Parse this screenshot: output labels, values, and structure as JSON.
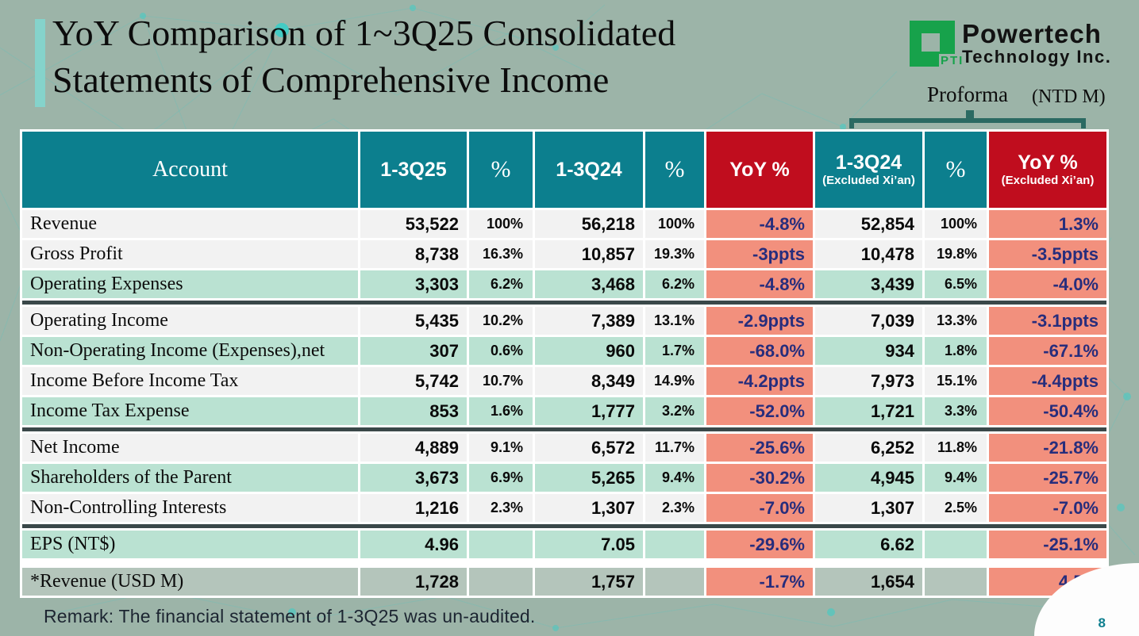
{
  "slide": {
    "title_line1": "YoY Comparison of 1~3Q25 Consolidated",
    "title_line2": "Statements of Comprehensive Income",
    "proforma_label": "Proforma",
    "unit_label": "(NTD M)",
    "remark": "Remark: The financial statement of 1-3Q25 was un-audited.",
    "page_number": "8"
  },
  "logo": {
    "brand_line1": "Powertech",
    "brand_line2": "Technology Inc.",
    "monogram": "PTI"
  },
  "colors": {
    "background": "#9cb4a8",
    "header_teal": "#0c7f8e",
    "header_red": "#c00d1e",
    "yoy_cell_salmon": "#f2907d",
    "yoy_text_navy": "#272d7c",
    "row_white": "#f2f2f2",
    "row_mint": "#bae2d2",
    "row_sage": "#b4c5bb",
    "group_separator": "#3a4849",
    "bracket": "#2b6a62",
    "logo_green": "#17a24b",
    "accent_bar": "#85d3cb"
  },
  "table": {
    "headers": {
      "account": "Account",
      "q25": "1-3Q25",
      "pct": "%",
      "q24": "1-3Q24",
      "yoy": "YoY %",
      "q24x_line1": "1-3Q24",
      "q24x_line2": "(Excluded Xi’an)",
      "yoyx_line1": "YoY %",
      "yoyx_line2": "(Excluded Xi’an)"
    },
    "rows": [
      {
        "label": "Revenue",
        "q25": "53,522",
        "q25_pct": "100%",
        "q24": "56,218",
        "q24_pct": "100%",
        "yoy": "-4.8%",
        "q24x": "52,854",
        "q24x_pct": "100%",
        "yoyx": "1.3%",
        "shade": "white",
        "group_end": false,
        "gap_after": false
      },
      {
        "label": "Gross Profit",
        "q25": "8,738",
        "q25_pct": "16.3%",
        "q24": "10,857",
        "q24_pct": "19.3%",
        "yoy": "-3ppts",
        "q24x": "10,478",
        "q24x_pct": "19.8%",
        "yoyx": "-3.5ppts",
        "shade": "white",
        "group_end": false,
        "gap_after": false
      },
      {
        "label": "Operating Expenses",
        "q25": "3,303",
        "q25_pct": "6.2%",
        "q24": "3,468",
        "q24_pct": "6.2%",
        "yoy": "-4.8%",
        "q24x": "3,439",
        "q24x_pct": "6.5%",
        "yoyx": "-4.0%",
        "shade": "mint",
        "group_end": true,
        "gap_after": false
      },
      {
        "label": "Operating Income",
        "q25": "5,435",
        "q25_pct": "10.2%",
        "q24": "7,389",
        "q24_pct": "13.1%",
        "yoy": "-2.9ppts",
        "q24x": "7,039",
        "q24x_pct": "13.3%",
        "yoyx": "-3.1ppts",
        "shade": "white",
        "group_end": false,
        "gap_after": false
      },
      {
        "label": "Non-Operating Income (Expenses),net",
        "q25": "307",
        "q25_pct": "0.6%",
        "q24": "960",
        "q24_pct": "1.7%",
        "yoy": "-68.0%",
        "q24x": "934",
        "q24x_pct": "1.8%",
        "yoyx": "-67.1%",
        "shade": "mint",
        "group_end": false,
        "gap_after": false
      },
      {
        "label": "Income Before Income Tax",
        "q25": "5,742",
        "q25_pct": "10.7%",
        "q24": "8,349",
        "q24_pct": "14.9%",
        "yoy": "-4.2ppts",
        "q24x": "7,973",
        "q24x_pct": "15.1%",
        "yoyx": "-4.4ppts",
        "shade": "white",
        "group_end": false,
        "gap_after": false
      },
      {
        "label": "Income Tax Expense",
        "q25": "853",
        "q25_pct": "1.6%",
        "q24": "1,777",
        "q24_pct": "3.2%",
        "yoy": "-52.0%",
        "q24x": "1,721",
        "q24x_pct": "3.3%",
        "yoyx": "-50.4%",
        "shade": "mint",
        "group_end": true,
        "gap_after": false
      },
      {
        "label": "Net Income",
        "q25": "4,889",
        "q25_pct": "9.1%",
        "q24": "6,572",
        "q24_pct": "11.7%",
        "yoy": "-25.6%",
        "q24x": "6,252",
        "q24x_pct": "11.8%",
        "yoyx": "-21.8%",
        "shade": "white",
        "group_end": false,
        "gap_after": false
      },
      {
        "label": "Shareholders of the Parent",
        "q25": "3,673",
        "q25_pct": "6.9%",
        "q24": "5,265",
        "q24_pct": "9.4%",
        "yoy": "-30.2%",
        "q24x": "4,945",
        "q24x_pct": "9.4%",
        "yoyx": "-25.7%",
        "shade": "mint",
        "group_end": false,
        "gap_after": false
      },
      {
        "label": "Non-Controlling Interests",
        "q25": "1,216",
        "q25_pct": "2.3%",
        "q24": "1,307",
        "q24_pct": "2.3%",
        "yoy": "-7.0%",
        "q24x": "1,307",
        "q24x_pct": "2.5%",
        "yoyx": "-7.0%",
        "shade": "white",
        "group_end": true,
        "gap_after": false
      },
      {
        "label": "EPS (NT$)",
        "q25": "4.96",
        "q25_pct": "",
        "q24": "7.05",
        "q24_pct": "",
        "yoy": "-29.6%",
        "q24x": "6.62",
        "q24x_pct": "",
        "yoyx": "-25.1%",
        "shade": "mint",
        "group_end": false,
        "gap_after": true
      },
      {
        "label": "*Revenue (USD M)",
        "q25": "1,728",
        "q25_pct": "",
        "q24": "1,757",
        "q24_pct": "",
        "yoy": "-1.7%",
        "q24x": "1,654",
        "q24x_pct": "",
        "yoyx": "4.5%",
        "shade": "sage",
        "group_end": false,
        "gap_after": false
      }
    ]
  }
}
